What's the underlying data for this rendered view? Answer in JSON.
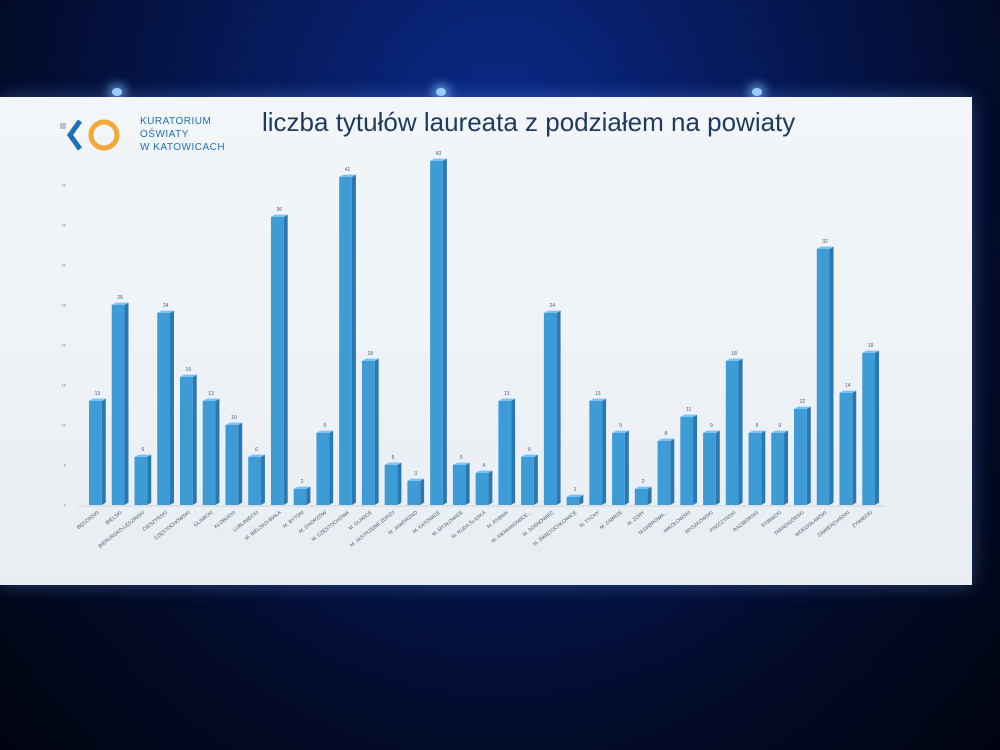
{
  "logo": {
    "line1": "KURATORIUM",
    "line2": "OŚWIATY",
    "line3": "W KATOWICACH",
    "icon": "ko-logo-icon"
  },
  "colors": {
    "bar_face": "#3d9bd6",
    "bar_side": "#2a78b0",
    "bar_top": "#7cc2ee",
    "title": "#1f3a5a",
    "logo": "#1d6fb8",
    "logo_ring": "#f4a83a"
  },
  "chart_data": {
    "type": "bar",
    "title": "liczba tytułów laureata z podziałem na powiaty",
    "xlabel": "",
    "ylabel": "",
    "ylim": [
      0,
      45
    ],
    "y_ticks": [
      0,
      5,
      10,
      15,
      20,
      25,
      30,
      35,
      40
    ],
    "grid": false,
    "categories": [
      "BĘDZIŃSKI",
      "BIELSKI",
      "BIERUŃSKO-LĘDZIŃSKI",
      "CIESZYŃSKI",
      "CZĘSTOCHOWSKI",
      "GLIWICKI",
      "KŁOBUCKI",
      "LUBLINIECKI",
      "M. BIELSKO-BIAŁA",
      "M. BYTOM",
      "M. CHORZÓW",
      "M. CZĘSTOCHOWA",
      "M. GLIWICE",
      "M. JASTRZĘBIE ZDRÓJ",
      "M. JAWORZNO",
      "M. KATOWICE",
      "M. MYSŁOWICE",
      "M. RUDA ŚLĄSKA",
      "M. RYBNIK",
      "M. SIEMIANOWICE...",
      "M. SOSNOWIEC",
      "M. ŚWIĘTOCHŁOWICE",
      "M. TYCHY",
      "M. ZABRZE",
      "M. ŻORY",
      "M.DĄBROWA...",
      "MIKOŁOWSKI",
      "MYSZKOWSKI",
      "PSZCZYŃSKI",
      "RACIBORSKI",
      "RYBNICKI",
      "TARNOGÓRSKI",
      "WODZISŁAWSKI",
      "ZAWIERCIAŃSKI",
      "ŻYWIECKI"
    ],
    "values": [
      13,
      25,
      6,
      24,
      16,
      13,
      10,
      6,
      36,
      2,
      9,
      41,
      18,
      5,
      3,
      43,
      5,
      4,
      13,
      6,
      24,
      1,
      13,
      9,
      2,
      8,
      11,
      9,
      18,
      9,
      9,
      12,
      32,
      14,
      19
    ]
  }
}
